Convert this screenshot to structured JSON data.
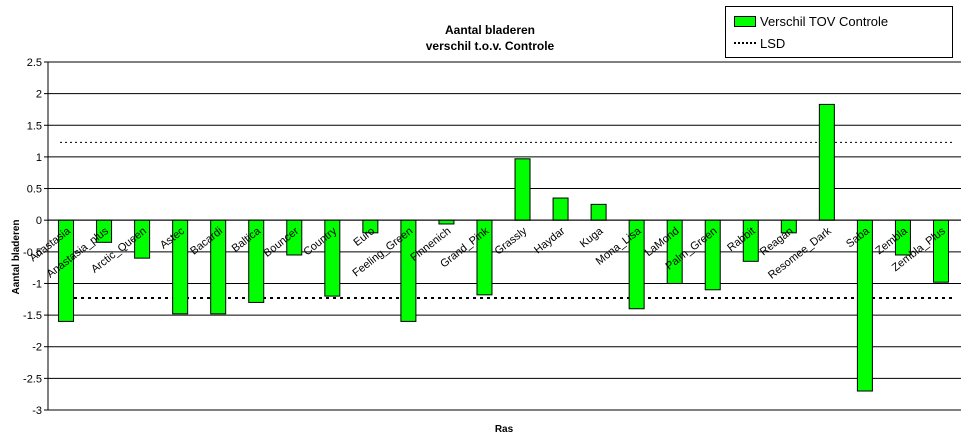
{
  "chart_data": {
    "type": "bar",
    "title": "Aantal bladeren",
    "subtitle": "verschil t.o.v. Controle",
    "xlabel": "Ras",
    "ylabel": "Aantal bladeren",
    "ylim": [
      -3,
      2.5
    ],
    "yticks": [
      2.5,
      2,
      1.5,
      1,
      0.5,
      0,
      -0.5,
      -1,
      -1.5,
      -2,
      -2.5,
      -3
    ],
    "ytick_labels": [
      "2.5",
      "2",
      "1.5",
      "1",
      "0.5",
      "0",
      "-0.5",
      "-1",
      "-1.5",
      "-2",
      "-2.5",
      "-3"
    ],
    "grid": true,
    "legend_position": "top-right",
    "categories": [
      "Anastasia",
      "Anastasia_plus",
      "Arctic_Queen",
      "Astec",
      "Bacardi",
      "Baltica",
      "Bouncer",
      "Country",
      "Euro",
      "Feeling_Green",
      "Finnenich",
      "Grand_Pink",
      "Grassly",
      "Haydar",
      "Kuga",
      "Mona_Lisa",
      "LaMond",
      "Palm_Green",
      "Rabbit",
      "Reagan",
      "Resomee_Dark",
      "Saba",
      "Zembla",
      "Zembla_Plus"
    ],
    "series": [
      {
        "name": "Verschil TOV Controle",
        "color": "#00ff00",
        "values": [
          -1.6,
          -0.35,
          -0.6,
          -1.48,
          -1.48,
          -1.3,
          -0.55,
          -1.2,
          -0.2,
          -1.6,
          -0.06,
          -1.18,
          0.97,
          0.35,
          0.25,
          -1.4,
          -1.0,
          -1.1,
          -0.65,
          -0.2,
          1.83,
          -2.7,
          -0.55,
          -0.98
        ]
      }
    ],
    "lsd": {
      "name": "LSD",
      "values": [
        1.23,
        -1.23
      ]
    }
  }
}
